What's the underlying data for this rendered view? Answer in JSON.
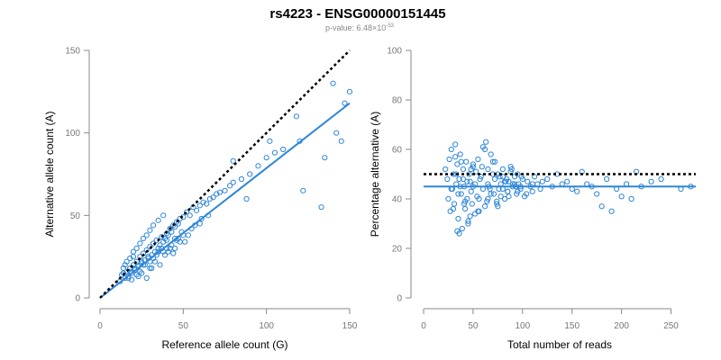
{
  "header": {
    "title": "rs4223 - ENSG00000151445",
    "pvalue_prefix": "p-value: 6.48",
    "pvalue_times": "×10",
    "pvalue_exponent": "-53"
  },
  "colors": {
    "points": "#2f86d8",
    "fit": "#2f86d8",
    "reference": "#000000"
  },
  "chart_data": [
    {
      "type": "scatter",
      "title": "",
      "xlabel": "Reference allele count (G)",
      "ylabel": "Alternative allele count (A)",
      "xlim": [
        0,
        150
      ],
      "ylim": [
        0,
        150
      ],
      "xticks": [
        0,
        50,
        100,
        150
      ],
      "yticks": [
        0,
        50,
        100,
        150
      ],
      "reference_line": {
        "x": [
          0,
          150
        ],
        "y": [
          0,
          150
        ],
        "style": "dotted"
      },
      "fit_line": {
        "x": [
          0,
          150
        ],
        "y": [
          0,
          118
        ],
        "style": "solid"
      },
      "x": [
        12,
        13,
        14,
        15,
        15,
        16,
        16,
        17,
        18,
        18,
        19,
        20,
        20,
        21,
        22,
        22,
        23,
        24,
        24,
        25,
        26,
        26,
        27,
        28,
        28,
        29,
        30,
        30,
        31,
        32,
        32,
        33,
        34,
        35,
        35,
        36,
        37,
        38,
        38,
        39,
        40,
        41,
        42,
        43,
        44,
        45,
        46,
        47,
        48,
        50,
        52,
        54,
        56,
        58,
        60,
        62,
        64,
        66,
        68,
        70,
        72,
        75,
        78,
        80,
        85,
        90,
        95,
        100,
        105,
        110,
        120,
        122,
        135,
        142,
        147,
        14,
        18,
        22,
        26,
        30,
        34,
        38,
        42,
        46,
        50,
        55,
        60,
        65,
        17,
        21,
        25,
        29,
        33,
        37,
        41,
        45,
        49,
        53,
        57,
        61,
        19,
        23,
        27,
        31,
        35,
        39,
        43,
        47,
        51,
        24,
        28,
        32,
        36,
        40,
        44,
        48,
        20,
        25,
        30,
        35,
        40,
        45,
        80,
        88,
        102,
        118,
        133,
        140,
        145,
        150
      ],
      "y": [
        10,
        14,
        18,
        12,
        20,
        16,
        22,
        13,
        18,
        24,
        15,
        20,
        28,
        17,
        22,
        30,
        19,
        25,
        33,
        21,
        27,
        36,
        23,
        29,
        38,
        24,
        31,
        41,
        26,
        33,
        44,
        28,
        35,
        30,
        47,
        32,
        37,
        34,
        50,
        36,
        39,
        38,
        42,
        40,
        44,
        43,
        46,
        45,
        48,
        49,
        52,
        50,
        55,
        53,
        56,
        58,
        57,
        60,
        61,
        63,
        64,
        65,
        68,
        70,
        72,
        75,
        80,
        85,
        88,
        90,
        95,
        65,
        85,
        100,
        118,
        15,
        16,
        14,
        20,
        22,
        26,
        28,
        30,
        35,
        38,
        42,
        45,
        50,
        12,
        18,
        15,
        25,
        22,
        30,
        28,
        36,
        40,
        38,
        44,
        48,
        11,
        13,
        20,
        18,
        28,
        26,
        32,
        36,
        34,
        16,
        12,
        24,
        20,
        30,
        27,
        34,
        25,
        22,
        18,
        28,
        35,
        30,
        83,
        60,
        95,
        110,
        55,
        130,
        95,
        125
      ]
    },
    {
      "type": "scatter",
      "title": "",
      "xlabel": "Total number of reads",
      "ylabel": "Percentage alternative (A)",
      "xlim": [
        0,
        275
      ],
      "ylim": [
        0,
        100
      ],
      "xticks": [
        0,
        50,
        100,
        150,
        200,
        250
      ],
      "yticks": [
        0,
        20,
        40,
        60,
        80,
        100
      ],
      "reference_line": {
        "x": [
          0,
          275
        ],
        "y": [
          50,
          50
        ],
        "style": "dotted"
      },
      "fit_line": {
        "x": [
          0,
          275
        ],
        "y": [
          45,
          45
        ],
        "style": "solid"
      },
      "x": [
        22,
        24,
        25,
        26,
        27,
        28,
        29,
        30,
        31,
        32,
        33,
        34,
        35,
        36,
        37,
        38,
        39,
        40,
        41,
        42,
        43,
        44,
        45,
        46,
        47,
        48,
        49,
        50,
        52,
        54,
        55,
        56,
        58,
        60,
        62,
        64,
        65,
        66,
        68,
        70,
        72,
        74,
        75,
        76,
        78,
        80,
        82,
        84,
        85,
        86,
        88,
        90,
        92,
        94,
        95,
        96,
        98,
        100,
        102,
        105,
        108,
        110,
        112,
        115,
        118,
        120,
        125,
        130,
        135,
        140,
        145,
        150,
        155,
        160,
        165,
        170,
        175,
        180,
        185,
        190,
        195,
        200,
        205,
        210,
        215,
        220,
        230,
        240,
        260,
        270,
        28,
        30,
        33,
        35,
        38,
        41,
        44,
        47,
        50,
        53,
        56,
        59,
        62,
        65,
        68,
        71,
        74,
        77,
        80,
        83,
        86,
        89,
        92,
        95,
        98,
        32,
        36,
        40,
        45,
        50,
        55,
        60,
        65,
        70,
        75,
        80,
        85,
        90,
        34,
        37,
        42,
        48,
        52,
        57,
        63,
        67,
        72,
        78,
        82,
        88,
        93,
        99,
        104,
        110
      ],
      "y": [
        52,
        48,
        40,
        56,
        35,
        60,
        44,
        50,
        38,
        62,
        46,
        54,
        32,
        48,
        58,
        42,
        28,
        52,
        45,
        36,
        55,
        40,
        30,
        50,
        47,
        43,
        38,
        53,
        46,
        41,
        56,
        35,
        49,
        44,
        60,
        39,
        52,
        45,
        42,
        55,
        48,
        38,
        50,
        44,
        46,
        52,
        40,
        48,
        43,
        47,
        51,
        45,
        49,
        42,
        50,
        46,
        44,
        48,
        41,
        47,
        45,
        43,
        49,
        46,
        44,
        47,
        48,
        45,
        50,
        46,
        47,
        44,
        43,
        51,
        46,
        45,
        42,
        37,
        48,
        35,
        44,
        41,
        46,
        40,
        51,
        45,
        47,
        48,
        44,
        45,
        44,
        36,
        50,
        42,
        55,
        38,
        47,
        33,
        45,
        51,
        40,
        53,
        37,
        46,
        58,
        42,
        39,
        49,
        44,
        47,
        41,
        52,
        46,
        43,
        45,
        57,
        26,
        48,
        31,
        54,
        35,
        61,
        40,
        50,
        37,
        49,
        43,
        46,
        27,
        45,
        39,
        52,
        34,
        48,
        63,
        44,
        55,
        41,
        47,
        53,
        45,
        49,
        42,
        46
      ]
    }
  ]
}
